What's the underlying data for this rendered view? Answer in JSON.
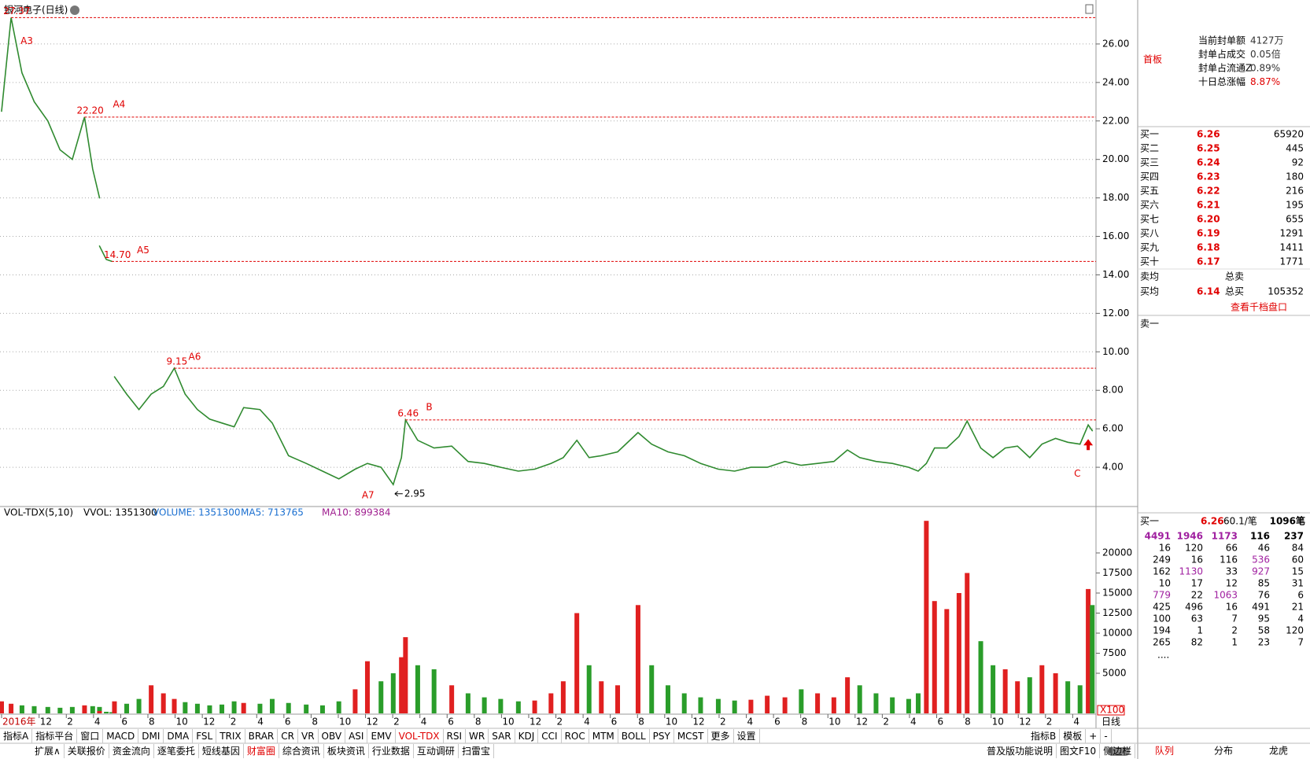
{
  "header": {
    "title": "银河电子(日线)"
  },
  "chart_data": [
    {
      "type": "line",
      "color": "#2f8a2f",
      "grid": true,
      "period_label": "日线",
      "xlim": [
        0,
        80.3
      ],
      "ylim": [
        2,
        28
      ],
      "xticks": [
        {
          "value": 0,
          "label": "2016年"
        },
        {
          "value": 2.76,
          "label": "12"
        },
        {
          "value": 4.76,
          "label": "2"
        },
        {
          "value": 6.76,
          "label": "4"
        },
        {
          "value": 8.76,
          "label": "6"
        },
        {
          "value": 10.76,
          "label": "8"
        },
        {
          "value": 12.76,
          "label": "10"
        },
        {
          "value": 14.76,
          "label": "12"
        },
        {
          "value": 16.76,
          "label": "2"
        },
        {
          "value": 18.76,
          "label": "4"
        },
        {
          "value": 20.76,
          "label": "6"
        },
        {
          "value": 22.76,
          "label": "8"
        },
        {
          "value": 24.76,
          "label": "10"
        },
        {
          "value": 26.76,
          "label": "12"
        },
        {
          "value": 28.76,
          "label": "2"
        },
        {
          "value": 30.76,
          "label": "4"
        },
        {
          "value": 32.76,
          "label": "6"
        },
        {
          "value": 34.76,
          "label": "8"
        },
        {
          "value": 36.76,
          "label": "10"
        },
        {
          "value": 38.76,
          "label": "12"
        },
        {
          "value": 40.76,
          "label": "2"
        },
        {
          "value": 42.76,
          "label": "4"
        },
        {
          "value": 44.76,
          "label": "6"
        },
        {
          "value": 46.76,
          "label": "8"
        },
        {
          "value": 48.76,
          "label": "10"
        },
        {
          "value": 50.76,
          "label": "12"
        },
        {
          "value": 52.76,
          "label": "2"
        },
        {
          "value": 54.76,
          "label": "4"
        },
        {
          "value": 56.76,
          "label": "6"
        },
        {
          "value": 58.76,
          "label": "8"
        },
        {
          "value": 60.76,
          "label": "10"
        },
        {
          "value": 62.76,
          "label": "12"
        },
        {
          "value": 64.76,
          "label": "2"
        },
        {
          "value": 66.76,
          "label": "4"
        },
        {
          "value": 68.76,
          "label": "6"
        },
        {
          "value": 70.76,
          "label": "8"
        },
        {
          "value": 72.76,
          "label": "10"
        },
        {
          "value": 74.76,
          "label": "12"
        },
        {
          "value": 76.76,
          "label": "2"
        },
        {
          "value": 78.76,
          "label": "4"
        }
      ],
      "yticks": [
        {
          "value": 4,
          "label": "4.00"
        },
        {
          "value": 6,
          "label": "6.00"
        },
        {
          "value": 8,
          "label": "8.00"
        },
        {
          "value": 10,
          "label": "10.00"
        },
        {
          "value": 12,
          "label": "12.00"
        },
        {
          "value": 14,
          "label": "14.00"
        },
        {
          "value": 16,
          "label": "16.00"
        },
        {
          "value": 18,
          "label": "18.00"
        },
        {
          "value": 20,
          "label": "20.00"
        },
        {
          "value": 22,
          "label": "22.00"
        },
        {
          "value": 24,
          "label": "24.00"
        },
        {
          "value": 26,
          "label": "26.00"
        }
      ],
      "x": [
        0,
        0.7,
        1.5,
        2.4,
        3.4,
        4.3,
        5.2,
        6.1,
        6.7,
        7.2,
        7.2,
        7.2,
        7.7,
        8.1,
        8.2,
        8.3,
        9.2,
        10.1,
        11.0,
        11.9,
        12.7,
        13.5,
        14.4,
        15.3,
        16.2,
        17.1,
        17.8,
        19.0,
        19.9,
        21.1,
        22.4,
        23.6,
        24.8,
        26.0,
        26.9,
        27.9,
        28.8,
        29.4,
        29.7,
        30.6,
        31.8,
        33.1,
        34.3,
        35.5,
        36.7,
        38.0,
        39.2,
        40.4,
        41.3,
        42.3,
        43.2,
        44.1,
        45.3,
        46.8,
        47.8,
        49.0,
        50.2,
        51.4,
        52.7,
        53.9,
        55.1,
        56.3,
        57.6,
        58.8,
        60.0,
        61.2,
        62.2,
        63.1,
        64.3,
        65.5,
        66.7,
        67.4,
        68.0,
        68.6,
        69.5,
        70.4,
        71.0,
        72.0,
        72.9,
        73.8,
        74.7,
        75.6,
        76.5,
        77.5,
        78.4,
        79.3,
        79.9,
        80.2
      ],
      "values": [
        22.5,
        27.37,
        24.5,
        23.0,
        22.0,
        20.5,
        20.0,
        22.2,
        19.5,
        18.0,
        null,
        15.5,
        14.8,
        14.7,
        null,
        8.7,
        7.8,
        7.0,
        7.8,
        8.2,
        9.15,
        7.8,
        7.0,
        6.5,
        6.3,
        6.1,
        7.1,
        7.0,
        6.3,
        4.6,
        4.2,
        3.8,
        3.4,
        3.9,
        4.2,
        4.0,
        3.1,
        4.5,
        6.46,
        5.4,
        5.0,
        5.1,
        4.3,
        4.2,
        4.0,
        3.8,
        3.9,
        4.2,
        4.5,
        5.4,
        4.5,
        4.6,
        4.8,
        5.8,
        5.2,
        4.8,
        4.6,
        4.2,
        3.9,
        3.8,
        4.0,
        4.0,
        4.3,
        4.1,
        4.2,
        4.3,
        4.9,
        4.5,
        4.3,
        4.2,
        4.0,
        3.8,
        4.2,
        5.0,
        5.0,
        5.6,
        6.4,
        5.0,
        4.5,
        5.0,
        5.1,
        4.5,
        5.2,
        5.5,
        5.3,
        5.2,
        6.2,
        5.9
      ],
      "levels": [
        {
          "name": "A3",
          "value": 27.37,
          "value_label": "27.37",
          "x": 0.7,
          "line": true
        },
        {
          "name": "A4",
          "value": 22.2,
          "value_label": "22.20",
          "x": 6.1,
          "line": true
        },
        {
          "name": "A5",
          "value": 14.7,
          "value_label": "14.70",
          "x": 8.1,
          "line": true
        },
        {
          "name": "A6",
          "value": 9.15,
          "value_label": "9.15",
          "x": 12.7,
          "line": true
        },
        {
          "name": "B",
          "value": 6.46,
          "value_label": "6.46",
          "x": 29.7,
          "line": true
        },
        {
          "name": "A7",
          "value": 2.95,
          "value_label": "2.95",
          "x": 28.8,
          "line": false
        },
        {
          "name": "C",
          "x": 79.9,
          "line": false
        }
      ],
      "level_color": "#e00000"
    },
    {
      "type": "bar",
      "indicator": "VOL-TDX(5,10)",
      "legend": [
        "VVOL: 1351300",
        "VOLUME: 1351300",
        "MA5: 713765",
        "MA10: 899384"
      ],
      "unit_label": "X100",
      "up_color": "#e02020",
      "down_color": "#2a9d2a",
      "xlim": [
        0,
        80.3
      ],
      "ylim": [
        0,
        25000
      ],
      "yticks": [
        5000,
        7500,
        10000,
        12500,
        15000,
        17500,
        20000
      ],
      "x": [
        0,
        0.7,
        1.5,
        2.4,
        3.4,
        4.3,
        5.2,
        6.1,
        6.7,
        7.2,
        7.2,
        7.2,
        7.7,
        8.1,
        8.2,
        8.3,
        9.2,
        10.1,
        11.0,
        11.9,
        12.7,
        13.5,
        14.4,
        15.3,
        16.2,
        17.1,
        17.8,
        19.0,
        19.9,
        21.1,
        22.4,
        23.6,
        24.8,
        26.0,
        26.9,
        27.9,
        28.8,
        29.4,
        29.7,
        30.6,
        31.8,
        33.1,
        34.3,
        35.5,
        36.7,
        38.0,
        39.2,
        40.4,
        41.3,
        42.3,
        43.2,
        44.1,
        45.3,
        46.8,
        47.8,
        49.0,
        50.2,
        51.4,
        52.7,
        53.9,
        55.1,
        56.3,
        57.6,
        58.8,
        60.0,
        61.2,
        62.2,
        63.1,
        64.3,
        65.5,
        66.7,
        67.4,
        68.0,
        68.6,
        69.5,
        70.4,
        71.0,
        72.0,
        72.9,
        73.8,
        74.7,
        75.6,
        76.5,
        77.5,
        78.4,
        79.3,
        79.9,
        80.2
      ],
      "values": [
        1500,
        1200,
        1000,
        900,
        800,
        700,
        800,
        1000,
        900,
        800,
        null,
        300,
        200,
        150,
        null,
        1500,
        1200,
        1800,
        3500,
        2500,
        1800,
        1400,
        1200,
        1000,
        1100,
        1500,
        1300,
        1200,
        1800,
        1300,
        1100,
        1000,
        1500,
        3000,
        6500,
        4000,
        5000,
        7000,
        9500,
        6000,
        5500,
        3500,
        2500,
        2000,
        1800,
        1500,
        1600,
        2500,
        4000,
        12500,
        6000,
        4000,
        3500,
        13500,
        6000,
        3500,
        2500,
        2000,
        1800,
        1600,
        1700,
        2200,
        2000,
        3000,
        2500,
        2000,
        4500,
        3500,
        2500,
        2000,
        1800,
        2500,
        24000,
        14000,
        13000,
        15000,
        17500,
        9000,
        6000,
        5500,
        4000,
        4500,
        6000,
        5000,
        4000,
        3500,
        15500,
        13500
      ]
    }
  ],
  "right_panel": {
    "badge": "首板",
    "seal_info": [
      {
        "label": "当前封单额",
        "value": "4127万"
      },
      {
        "label": "封单占成交",
        "value": "0.05倍"
      },
      {
        "label": "封单占流通Z",
        "value": "0.89%"
      },
      {
        "label": "十日总涨幅",
        "value": "8.87%"
      }
    ],
    "bids": [
      {
        "label": "买一",
        "price": "6.26",
        "volume": "65920"
      },
      {
        "label": "买二",
        "price": "6.25",
        "volume": "445"
      },
      {
        "label": "买三",
        "price": "6.24",
        "volume": "92"
      },
      {
        "label": "买四",
        "price": "6.23",
        "volume": "180"
      },
      {
        "label": "买五",
        "price": "6.22",
        "volume": "216"
      },
      {
        "label": "买六",
        "price": "6.21",
        "volume": "195"
      },
      {
        "label": "买七",
        "price": "6.20",
        "volume": "655"
      },
      {
        "label": "买八",
        "price": "6.19",
        "volume": "1291"
      },
      {
        "label": "买九",
        "price": "6.18",
        "volume": "1411"
      },
      {
        "label": "买十",
        "price": "6.17",
        "volume": "1771"
      }
    ],
    "avg_sell": {
      "label": "卖均",
      "total_label": "总卖"
    },
    "avg_buy": {
      "label": "买均",
      "price": "6.14",
      "total_label": "总买",
      "total": "105352"
    },
    "depth_link": "查看千档盘口",
    "ask1": "卖一",
    "queue": {
      "label": "买一",
      "price": "6.26",
      "per_order": "60.1/笔",
      "orders": "1096笔",
      "rows": [
        [
          4491,
          1946,
          1173,
          116,
          237
        ],
        [
          16,
          120,
          66,
          46,
          84
        ],
        [
          249,
          16,
          116,
          536,
          60
        ],
        [
          162,
          1130,
          33,
          927,
          15
        ],
        [
          10,
          17,
          12,
          85,
          31
        ],
        [
          779,
          22,
          1063,
          76,
          6
        ],
        [
          425,
          496,
          16,
          491,
          21
        ],
        [
          100,
          63,
          7,
          95,
          4
        ],
        [
          194,
          1,
          2,
          58,
          120
        ],
        [
          265,
          82,
          1,
          23,
          7
        ]
      ],
      "more": "...."
    },
    "tabs": [
      "队列",
      "分布",
      "龙虎"
    ]
  },
  "toolbar": {
    "row1_left": [
      "指标A",
      "指标平台",
      "窗口",
      "MACD",
      "DMI",
      "DMA",
      "FSL",
      "TRIX",
      "BRAR",
      "CR",
      "VR",
      "OBV",
      "ASI",
      "EMV",
      "VOL-TDX",
      "RSI",
      "WR",
      "SAR",
      "KDJ",
      "CCI",
      "ROC",
      "MTM",
      "BOLL",
      "PSY",
      "MCST",
      "更多",
      "设置"
    ],
    "row1_right": [
      "指标B",
      "模板",
      "+",
      "-"
    ],
    "row2_left": [
      "扩展∧",
      "关联报价",
      "资金流向",
      "逐笔委托",
      "短线基因",
      "财富圈",
      "综合资讯",
      "板块资讯",
      "行业数据",
      "互动调研",
      "扫雷宝"
    ],
    "row2_right": [
      "普及版功能说明",
      "图文F10",
      "侧边栏"
    ]
  }
}
